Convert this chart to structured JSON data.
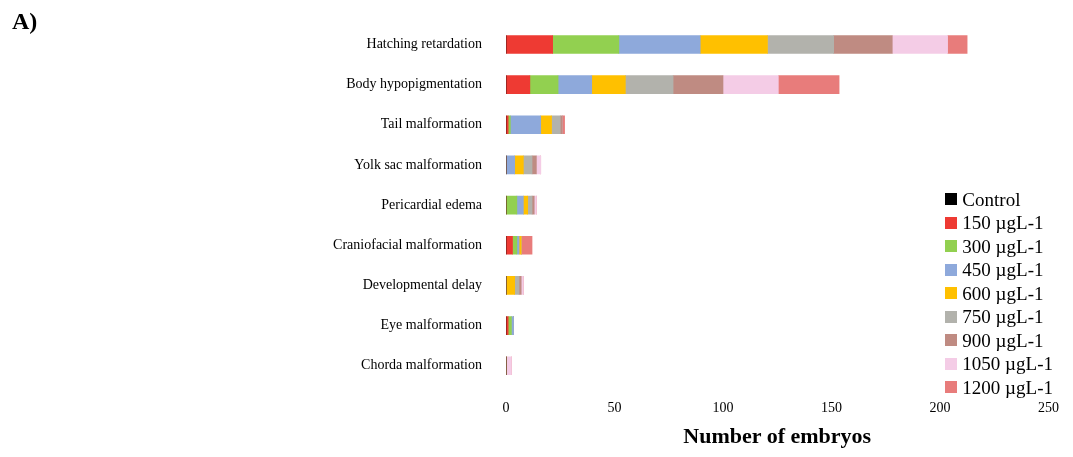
{
  "chart_data": {
    "type": "bar",
    "orientation": "horizontal",
    "stacked": true,
    "annotations": [
      "A)"
    ],
    "xlabel": "Number of embryos",
    "categories": [
      "Hatching retardation",
      "Body hypopigmentation",
      "Tail malformation",
      "Yolk sac malformation",
      "Pericardial edema",
      "Craniofacial malformation",
      "Developmental delay",
      "Eye malformation",
      "Chorda malformation"
    ],
    "xlim": [
      0,
      250
    ],
    "xticks": [
      0,
      50,
      100,
      150,
      200,
      250
    ],
    "grid": false,
    "legend": "bottom right",
    "series": [
      {
        "name": "Control",
        "color": "#000000",
        "values": [
          0,
          0,
          0,
          0,
          0,
          0,
          0,
          0,
          0
        ]
      },
      {
        "name": "150 µgL-1",
        "color": "#ee3a33",
        "values": [
          21.5,
          11,
          1,
          0,
          0,
          3,
          0,
          1,
          0
        ]
      },
      {
        "name": "300 µgL-1",
        "color": "#92d050",
        "values": [
          30.5,
          13,
          1,
          0,
          5,
          2,
          0,
          1.5,
          0
        ]
      },
      {
        "name": "450 µgL-1",
        "color": "#8ea9db",
        "values": [
          37.5,
          15.5,
          14,
          4,
          3,
          1,
          0,
          1,
          0
        ]
      },
      {
        "name": "600 µgL-1",
        "color": "#ffc000",
        "values": [
          31,
          15.5,
          5,
          4,
          2,
          1,
          4,
          0,
          0
        ]
      },
      {
        "name": "750 µgL-1",
        "color": "#b2b2ac",
        "values": [
          30.5,
          22,
          4,
          4,
          2,
          0,
          2,
          0,
          0
        ]
      },
      {
        "name": "900 µgL-1",
        "color": "#bf8b82",
        "values": [
          27,
          23,
          1,
          2,
          1,
          0,
          1,
          0,
          0
        ]
      },
      {
        "name": "1050 µgL-1",
        "color": "#f4cce6",
        "values": [
          25.5,
          25.5,
          0,
          2,
          1,
          0,
          1,
          0,
          2.5
        ]
      },
      {
        "name": "1200 µgL-1",
        "color": "#e87c7b",
        "values": [
          9,
          28,
          1,
          0,
          0,
          5,
          0,
          0,
          0
        ]
      }
    ]
  }
}
